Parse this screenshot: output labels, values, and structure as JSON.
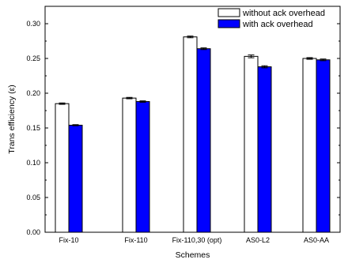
{
  "chart_data": {
    "type": "bar",
    "categories": [
      "Fix-10",
      "Fix-110",
      "Fix-110,30 (opt)",
      "AS0-L2",
      "AS0-AA"
    ],
    "series": [
      {
        "name": "without ack overhead",
        "values": [
          0.185,
          0.193,
          0.281,
          0.253,
          0.25
        ],
        "errors": [
          0.001,
          0.001,
          0.0012,
          0.002,
          0.0012
        ],
        "color": "#ffffff"
      },
      {
        "name": "with ack overhead",
        "values": [
          0.154,
          0.188,
          0.264,
          0.238,
          0.248
        ],
        "errors": [
          0.0008,
          0.001,
          0.0012,
          0.0015,
          0.0012
        ],
        "color": "#0000ff"
      }
    ],
    "xlabel": "Schemes",
    "ylabel": "Trans efficiency (ε)",
    "ylim": [
      0,
      0.325
    ],
    "yticks": [
      0.0,
      0.05,
      0.1,
      0.15,
      0.2,
      0.25,
      0.3
    ],
    "ytick_labels": [
      "0.00",
      "0.05",
      "0.10",
      "0.15",
      "0.20",
      "0.25",
      "0.30"
    ],
    "grid": false,
    "legend_position": "top-right"
  }
}
